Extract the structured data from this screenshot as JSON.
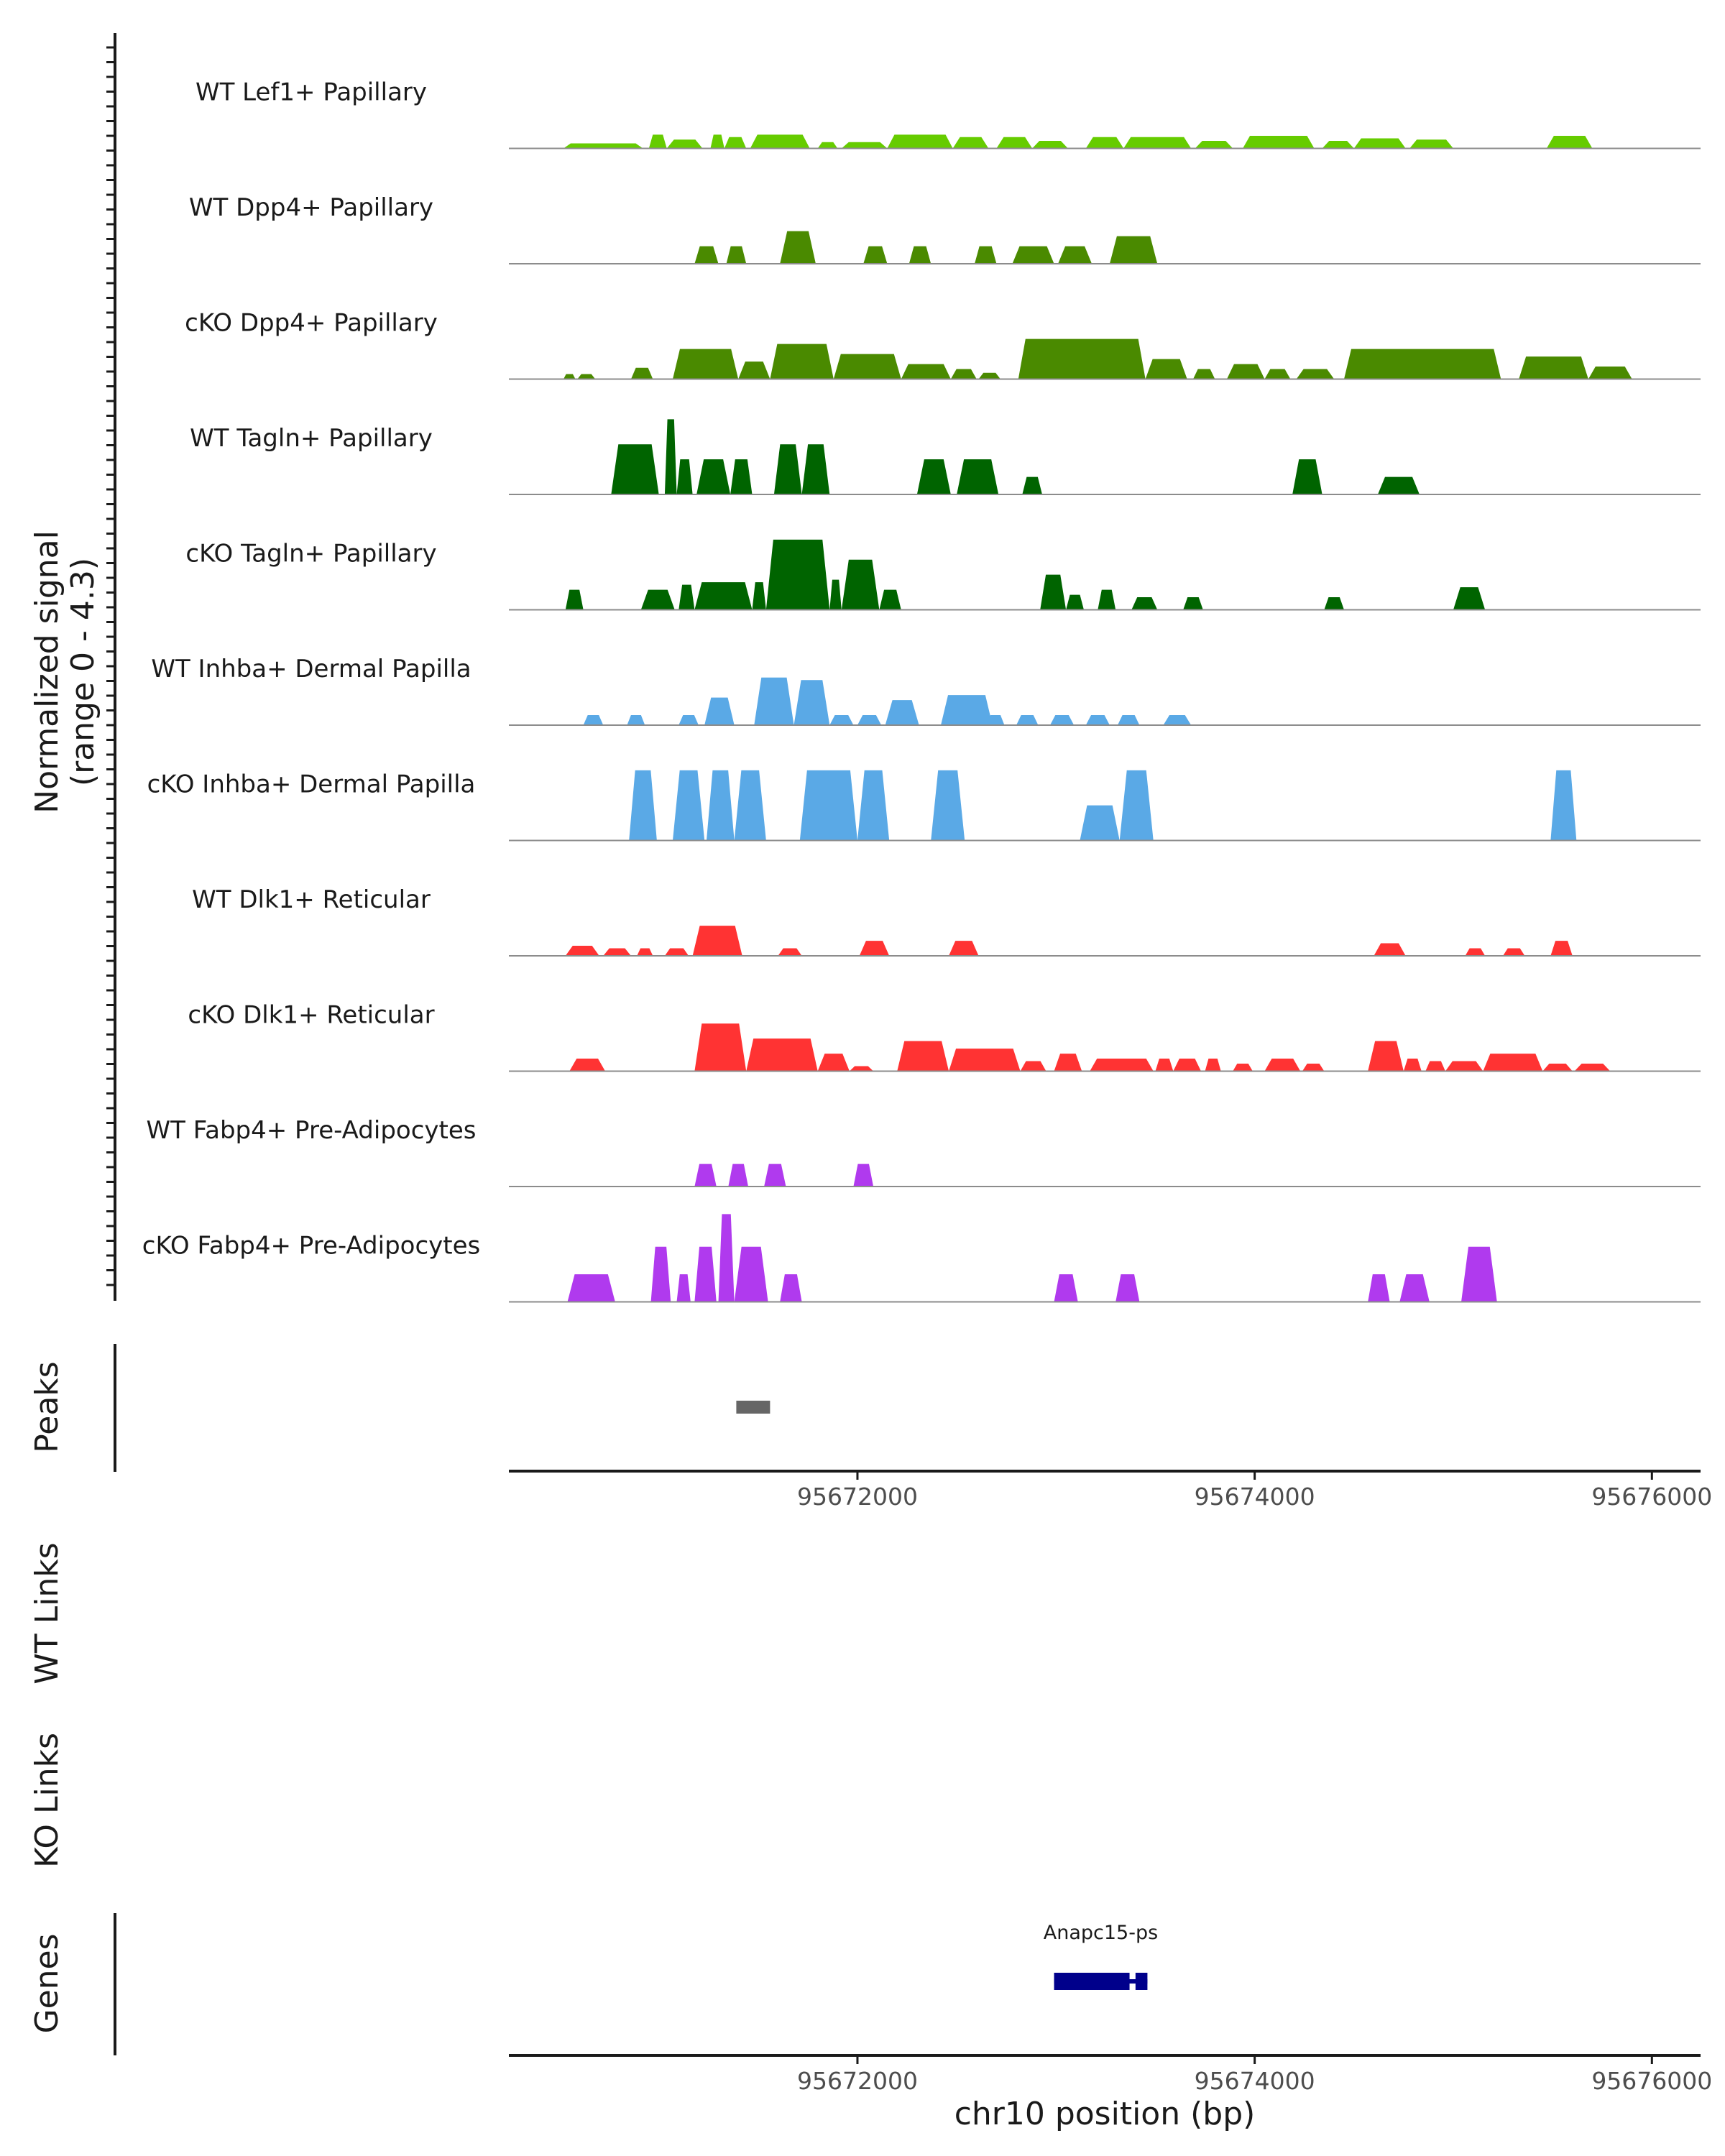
{
  "chart_data": {
    "type": "area",
    "chromosome": "chr10",
    "xlim": [
      95670245,
      95676245
    ],
    "ylim": [
      0,
      4.3
    ],
    "coverage_ylabel": "Normalized signal",
    "coverage_ylabel_range": "(range 0 - 4.3)",
    "peaks_label": "Peaks",
    "wt_links_label": "WT Links",
    "ko_links_label": "KO Links",
    "genes_label": "Genes",
    "xlabel": "chr10 position (bp)",
    "x_ticks": [
      95672000,
      95674000,
      95676000
    ],
    "x_tick_labels": [
      "95672000",
      "95674000",
      "95676000"
    ],
    "tracks": [
      {
        "name": "WT Lef1+ Papillary",
        "color": "#66CC00",
        "peaks": [
          [
            95670520,
            95670920,
            0.2
          ],
          [
            95670950,
            95671040,
            0.55
          ],
          [
            95671040,
            95671220,
            0.35
          ],
          [
            95671260,
            95671330,
            0.55
          ],
          [
            95671330,
            95671440,
            0.45
          ],
          [
            95671460,
            95671760,
            0.55
          ],
          [
            95671800,
            95671900,
            0.25
          ],
          [
            95671920,
            95672150,
            0.25
          ],
          [
            95672150,
            95672480,
            0.55
          ],
          [
            95672480,
            95672660,
            0.45
          ],
          [
            95672700,
            95672880,
            0.45
          ],
          [
            95672880,
            95673060,
            0.3
          ],
          [
            95673150,
            95673340,
            0.45
          ],
          [
            95673340,
            95673680,
            0.45
          ],
          [
            95673700,
            95673890,
            0.3
          ],
          [
            95673940,
            95674300,
            0.5
          ],
          [
            95674340,
            95674500,
            0.3
          ],
          [
            95674500,
            95674760,
            0.4
          ],
          [
            95674780,
            95675000,
            0.35
          ],
          [
            95675470,
            95675700,
            0.5
          ]
        ]
      },
      {
        "name": "WT Dpp4+ Papillary",
        "color": "#4A8A00",
        "peaks": [
          [
            95671180,
            95671300,
            0.7
          ],
          [
            95671340,
            95671440,
            0.7
          ],
          [
            95671610,
            95671790,
            1.3
          ],
          [
            95672030,
            95672150,
            0.7
          ],
          [
            95672260,
            95672370,
            0.7
          ],
          [
            95672590,
            95672700,
            0.7
          ],
          [
            95672780,
            95672990,
            0.7
          ],
          [
            95673010,
            95673180,
            0.7
          ],
          [
            95673270,
            95673510,
            1.1
          ]
        ]
      },
      {
        "name": "cKO Dpp4+ Papillary",
        "color": "#4A8A00",
        "peaks": [
          [
            95670520,
            95670580,
            0.2
          ],
          [
            95670590,
            95670680,
            0.2
          ],
          [
            95670860,
            95670970,
            0.45
          ],
          [
            95671070,
            95671400,
            1.2
          ],
          [
            95671400,
            95671560,
            0.7
          ],
          [
            95671560,
            95671880,
            1.4
          ],
          [
            95671880,
            95672220,
            1.0
          ],
          [
            95672220,
            95672470,
            0.6
          ],
          [
            95672470,
            95672600,
            0.4
          ],
          [
            95672610,
            95672720,
            0.25
          ],
          [
            95672810,
            95673450,
            1.6
          ],
          [
            95673450,
            95673660,
            0.8
          ],
          [
            95673690,
            95673800,
            0.4
          ],
          [
            95673860,
            95674050,
            0.6
          ],
          [
            95674050,
            95674180,
            0.4
          ],
          [
            95674210,
            95674400,
            0.4
          ],
          [
            95674450,
            95675240,
            1.2
          ],
          [
            95675330,
            95675680,
            0.9
          ],
          [
            95675680,
            95675900,
            0.5
          ]
        ]
      },
      {
        "name": "WT Tagln+ Papillary",
        "color": "#006400",
        "peaks": [
          [
            95670760,
            95671000,
            2.0
          ],
          [
            95671030,
            95671090,
            3.0
          ],
          [
            95671090,
            95671170,
            1.4
          ],
          [
            95671190,
            95671360,
            1.4
          ],
          [
            95671360,
            95671470,
            1.4
          ],
          [
            95671580,
            95671720,
            2.0
          ],
          [
            95671720,
            95671860,
            2.0
          ],
          [
            95672300,
            95672470,
            1.4
          ],
          [
            95672500,
            95672710,
            1.4
          ],
          [
            95672830,
            95672930,
            0.7
          ],
          [
            95674190,
            95674340,
            1.4
          ],
          [
            95674620,
            95674830,
            0.7
          ]
        ]
      },
      {
        "name": "cKO Tagln+ Papillary",
        "color": "#006400",
        "peaks": [
          [
            95670530,
            95670620,
            0.8
          ],
          [
            95670910,
            95671080,
            0.8
          ],
          [
            95671100,
            95671180,
            1.0
          ],
          [
            95671180,
            95671470,
            1.1
          ],
          [
            95671470,
            95671540,
            1.1
          ],
          [
            95671540,
            95671860,
            2.8
          ],
          [
            95671860,
            95671920,
            1.2
          ],
          [
            95671920,
            95672110,
            2.0
          ],
          [
            95672110,
            95672220,
            0.8
          ],
          [
            95672920,
            95673050,
            1.4
          ],
          [
            95673050,
            95673140,
            0.6
          ],
          [
            95673210,
            95673300,
            0.8
          ],
          [
            95673380,
            95673510,
            0.5
          ],
          [
            95673640,
            95673740,
            0.5
          ],
          [
            95674350,
            95674450,
            0.5
          ],
          [
            95675000,
            95675160,
            0.9
          ]
        ]
      },
      {
        "name": "WT Inhba+ Dermal Papilla",
        "color": "#5AA9E6",
        "peaks": [
          [
            95670620,
            95670720,
            0.4
          ],
          [
            95670840,
            95670930,
            0.4
          ],
          [
            95671100,
            95671200,
            0.4
          ],
          [
            95671230,
            95671380,
            1.1
          ],
          [
            95671480,
            95671680,
            1.9
          ],
          [
            95671680,
            95671860,
            1.8
          ],
          [
            95671860,
            95671980,
            0.4
          ],
          [
            95672000,
            95672120,
            0.4
          ],
          [
            95672140,
            95672310,
            1.0
          ],
          [
            95672420,
            95672680,
            1.2
          ],
          [
            95672650,
            95672740,
            0.4
          ],
          [
            95672800,
            95672910,
            0.4
          ],
          [
            95672970,
            95673090,
            0.4
          ],
          [
            95673150,
            95673270,
            0.4
          ],
          [
            95673310,
            95673420,
            0.4
          ],
          [
            95673540,
            95673680,
            0.4
          ]
        ]
      },
      {
        "name": "cKO Inhba+ Dermal Papilla",
        "color": "#5AA9E6",
        "peaks": [
          [
            95670850,
            95670990,
            2.8
          ],
          [
            95671070,
            95671230,
            2.8
          ],
          [
            95671240,
            95671380,
            2.8
          ],
          [
            95671380,
            95671540,
            2.8
          ],
          [
            95671710,
            95672000,
            2.8
          ],
          [
            95672000,
            95672160,
            2.8
          ],
          [
            95672370,
            95672540,
            2.8
          ],
          [
            95673120,
            95673320,
            1.4
          ],
          [
            95673320,
            95673490,
            2.8
          ],
          [
            95675490,
            95675620,
            2.8
          ]
        ]
      },
      {
        "name": "WT Dlk1+ Reticular",
        "color": "#FF3333",
        "peaks": [
          [
            95670530,
            95670700,
            0.4
          ],
          [
            95670720,
            95670860,
            0.3
          ],
          [
            95670890,
            95670970,
            0.3
          ],
          [
            95671030,
            95671150,
            0.3
          ],
          [
            95671170,
            95671420,
            1.2
          ],
          [
            95671600,
            95671720,
            0.3
          ],
          [
            95672010,
            95672160,
            0.6
          ],
          [
            95672460,
            95672610,
            0.6
          ],
          [
            95674600,
            95674760,
            0.5
          ],
          [
            95675060,
            95675160,
            0.3
          ],
          [
            95675250,
            95675360,
            0.3
          ],
          [
            95675490,
            95675600,
            0.6
          ]
        ]
      },
      {
        "name": "cKO Dlk1+ Reticular",
        "color": "#FF3333",
        "peaks": [
          [
            95670550,
            95670730,
            0.5
          ],
          [
            95671180,
            95671440,
            1.9
          ],
          [
            95671440,
            95671800,
            1.3
          ],
          [
            95671800,
            95671960,
            0.7
          ],
          [
            95671960,
            95672080,
            0.2
          ],
          [
            95672200,
            95672460,
            1.2
          ],
          [
            95672460,
            95672820,
            0.9
          ],
          [
            95672820,
            95672950,
            0.4
          ],
          [
            95672990,
            95673130,
            0.7
          ],
          [
            95673170,
            95673490,
            0.5
          ],
          [
            95673500,
            95673590,
            0.5
          ],
          [
            95673590,
            95673730,
            0.5
          ],
          [
            95673750,
            95673830,
            0.5
          ],
          [
            95673890,
            95673990,
            0.3
          ],
          [
            95674050,
            95674230,
            0.5
          ],
          [
            95674240,
            95674350,
            0.3
          ],
          [
            95674570,
            95674750,
            1.2
          ],
          [
            95674750,
            95674840,
            0.5
          ],
          [
            95674860,
            95674960,
            0.4
          ],
          [
            95674960,
            95675150,
            0.4
          ],
          [
            95675150,
            95675450,
            0.7
          ],
          [
            95675450,
            95675600,
            0.3
          ],
          [
            95675610,
            95675790,
            0.3
          ]
        ]
      },
      {
        "name": "WT Fabp4+ Pre-Adipocytes",
        "color": "#B03AEE",
        "peaks": [
          [
            95671180,
            95671290,
            0.9
          ],
          [
            95671350,
            95671450,
            0.9
          ],
          [
            95671530,
            95671640,
            0.9
          ],
          [
            95671980,
            95672080,
            0.9
          ]
        ]
      },
      {
        "name": "cKO Fabp4+ Pre-Adipocytes",
        "color": "#B03AEE",
        "peaks": [
          [
            95670540,
            95670780,
            1.1
          ],
          [
            95670960,
            95671060,
            2.2
          ],
          [
            95671090,
            95671160,
            1.1
          ],
          [
            95671180,
            95671290,
            2.2
          ],
          [
            95671300,
            95671380,
            3.5
          ],
          [
            95671380,
            95671550,
            2.2
          ],
          [
            95671610,
            95671720,
            1.1
          ],
          [
            95672990,
            95673110,
            1.1
          ],
          [
            95673300,
            95673420,
            1.1
          ],
          [
            95674570,
            95674680,
            1.1
          ],
          [
            95674730,
            95674880,
            1.1
          ],
          [
            95675040,
            95675220,
            2.2
          ]
        ]
      }
    ],
    "peak_regions": [
      [
        95671390,
        95671560
      ]
    ],
    "genes": [
      {
        "name": "Anapc15-ps",
        "start": 95672990,
        "end": 95673460,
        "strand": "-",
        "exons": [
          [
            95672990,
            95673370
          ],
          [
            95673400,
            95673460
          ]
        ]
      }
    ]
  }
}
